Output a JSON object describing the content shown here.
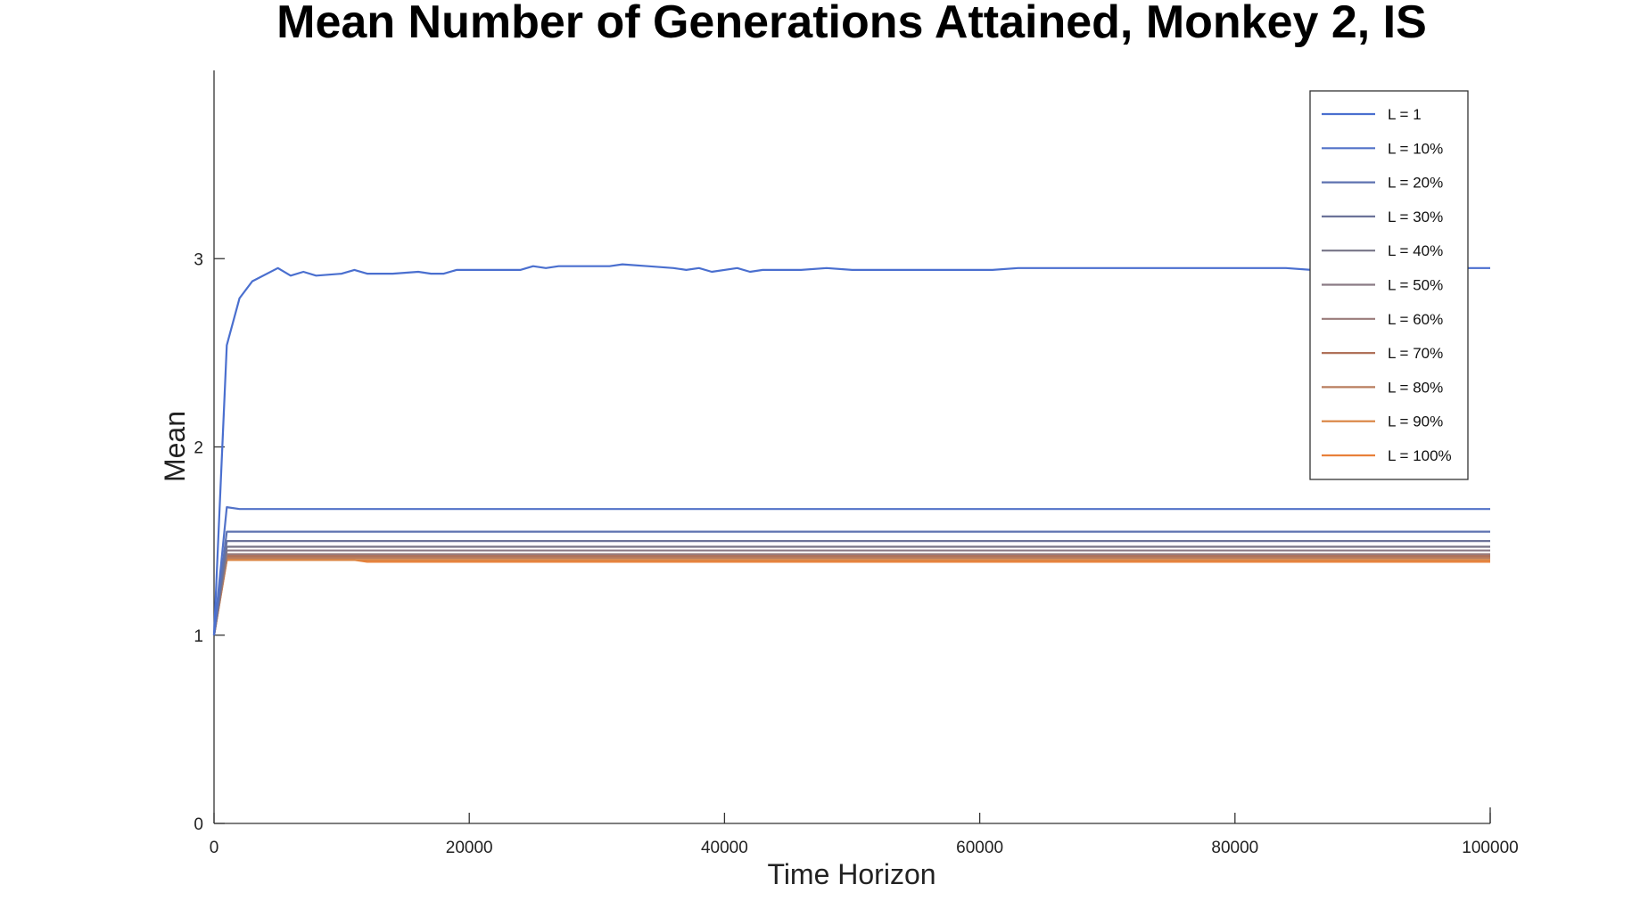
{
  "chart_data": {
    "type": "line",
    "title": "Mean Number of Generations Attained, Monkey 2, IS",
    "xlabel": "Time Horizon",
    "ylabel": "Mean",
    "xlim": [
      0,
      100000
    ],
    "ylim": [
      0,
      4
    ],
    "xticks": [
      0,
      20000,
      40000,
      60000,
      80000,
      100000
    ],
    "xtick_labels": [
      "0",
      "20000",
      "40000",
      "60000",
      "80000",
      "100000"
    ],
    "yticks": [
      0,
      1,
      2,
      3
    ],
    "ytick_labels": [
      "0",
      "1",
      "2",
      "3"
    ],
    "grid": false,
    "legend_position": "top-right",
    "x": [
      0,
      1000,
      2000,
      3000,
      5000,
      6000,
      7000,
      8000,
      10000,
      11000,
      12000,
      14000,
      16000,
      17000,
      18000,
      19000,
      21000,
      23000,
      24000,
      25000,
      26000,
      27000,
      28000,
      30000,
      31000,
      32000,
      34000,
      36000,
      37000,
      38000,
      39000,
      41000,
      42000,
      43000,
      46000,
      48000,
      50000,
      51000,
      52000,
      54000,
      56000,
      58000,
      60000,
      61000,
      63000,
      65000,
      66000,
      70000,
      72000,
      74000,
      76000,
      78000,
      82000,
      84000,
      86000,
      90000,
      95000,
      100000
    ],
    "series": [
      {
        "name": "L = 1",
        "color": "#4a6fcf",
        "values": [
          1.0,
          2.54,
          2.79,
          2.88,
          2.95,
          2.91,
          2.93,
          2.91,
          2.92,
          2.94,
          2.92,
          2.92,
          2.93,
          2.92,
          2.92,
          2.94,
          2.94,
          2.94,
          2.94,
          2.96,
          2.95,
          2.96,
          2.96,
          2.96,
          2.96,
          2.97,
          2.96,
          2.95,
          2.94,
          2.95,
          2.93,
          2.95,
          2.93,
          2.94,
          2.94,
          2.95,
          2.94,
          2.94,
          2.94,
          2.94,
          2.94,
          2.94,
          2.94,
          2.94,
          2.95,
          2.95,
          2.95,
          2.95,
          2.95,
          2.95,
          2.95,
          2.95,
          2.95,
          2.95,
          2.94,
          2.95,
          2.95,
          2.95
        ]
      },
      {
        "name": "L = 10%",
        "color": "#5272c8",
        "values": [
          1.0,
          1.68,
          1.67,
          1.67,
          1.67,
          1.67,
          1.67,
          1.67,
          1.67,
          1.67,
          1.67,
          1.67,
          1.67,
          1.67,
          1.67,
          1.67,
          1.67,
          1.67,
          1.67,
          1.67,
          1.67,
          1.67,
          1.67,
          1.67,
          1.67,
          1.67,
          1.67,
          1.67,
          1.67,
          1.67,
          1.67,
          1.67,
          1.67,
          1.67,
          1.67,
          1.67,
          1.67,
          1.67,
          1.67,
          1.67,
          1.67,
          1.67,
          1.67,
          1.67,
          1.67,
          1.67,
          1.67,
          1.67,
          1.67,
          1.67,
          1.67,
          1.67,
          1.67,
          1.67,
          1.67,
          1.67,
          1.67,
          1.67
        ]
      },
      {
        "name": "L = 20%",
        "color": "#5e72b0",
        "values": [
          1.0,
          1.55,
          1.55,
          1.55,
          1.55,
          1.55,
          1.55,
          1.55,
          1.55,
          1.55,
          1.55,
          1.55,
          1.55,
          1.55,
          1.55,
          1.55,
          1.55,
          1.55,
          1.55,
          1.55,
          1.55,
          1.55,
          1.55,
          1.55,
          1.55,
          1.55,
          1.55,
          1.55,
          1.55,
          1.55,
          1.55,
          1.55,
          1.55,
          1.55,
          1.55,
          1.55,
          1.55,
          1.55,
          1.55,
          1.55,
          1.55,
          1.55,
          1.55,
          1.55,
          1.55,
          1.55,
          1.55,
          1.55,
          1.55,
          1.55,
          1.55,
          1.55,
          1.55,
          1.55,
          1.55,
          1.55,
          1.55,
          1.55
        ]
      },
      {
        "name": "L = 30%",
        "color": "#6c7399",
        "values": [
          1.0,
          1.5,
          1.5,
          1.5,
          1.5,
          1.5,
          1.5,
          1.5,
          1.5,
          1.5,
          1.5,
          1.5,
          1.5,
          1.5,
          1.5,
          1.5,
          1.5,
          1.5,
          1.5,
          1.5,
          1.5,
          1.5,
          1.5,
          1.5,
          1.5,
          1.5,
          1.5,
          1.5,
          1.5,
          1.5,
          1.5,
          1.5,
          1.5,
          1.5,
          1.5,
          1.5,
          1.5,
          1.5,
          1.5,
          1.5,
          1.5,
          1.5,
          1.5,
          1.5,
          1.5,
          1.5,
          1.5,
          1.5,
          1.5,
          1.5,
          1.5,
          1.5,
          1.5,
          1.5,
          1.5,
          1.5,
          1.5,
          1.5
        ]
      },
      {
        "name": "L = 40%",
        "color": "#777587",
        "values": [
          1.0,
          1.47,
          1.47,
          1.47,
          1.47,
          1.47,
          1.47,
          1.47,
          1.47,
          1.47,
          1.47,
          1.47,
          1.47,
          1.47,
          1.47,
          1.47,
          1.47,
          1.47,
          1.47,
          1.47,
          1.47,
          1.47,
          1.47,
          1.47,
          1.47,
          1.47,
          1.47,
          1.47,
          1.47,
          1.47,
          1.47,
          1.47,
          1.47,
          1.47,
          1.47,
          1.47,
          1.47,
          1.47,
          1.47,
          1.47,
          1.47,
          1.47,
          1.47,
          1.47,
          1.47,
          1.47,
          1.47,
          1.47,
          1.47,
          1.47,
          1.47,
          1.47,
          1.47,
          1.47,
          1.47,
          1.47,
          1.47,
          1.47
        ]
      },
      {
        "name": "L = 50%",
        "color": "#8a7a85",
        "values": [
          1.0,
          1.45,
          1.45,
          1.45,
          1.45,
          1.45,
          1.45,
          1.45,
          1.45,
          1.45,
          1.45,
          1.45,
          1.45,
          1.45,
          1.45,
          1.45,
          1.45,
          1.45,
          1.45,
          1.45,
          1.45,
          1.45,
          1.45,
          1.45,
          1.45,
          1.45,
          1.45,
          1.45,
          1.45,
          1.45,
          1.45,
          1.45,
          1.45,
          1.45,
          1.45,
          1.45,
          1.45,
          1.45,
          1.45,
          1.45,
          1.45,
          1.45,
          1.45,
          1.45,
          1.45,
          1.45,
          1.45,
          1.45,
          1.45,
          1.45,
          1.45,
          1.45,
          1.45,
          1.45,
          1.45,
          1.45,
          1.45,
          1.45
        ]
      },
      {
        "name": "L = 60%",
        "color": "#9a7b7a",
        "values": [
          1.0,
          1.43,
          1.43,
          1.43,
          1.43,
          1.43,
          1.43,
          1.43,
          1.43,
          1.43,
          1.43,
          1.43,
          1.43,
          1.43,
          1.43,
          1.43,
          1.43,
          1.43,
          1.43,
          1.43,
          1.43,
          1.43,
          1.43,
          1.43,
          1.43,
          1.43,
          1.43,
          1.43,
          1.43,
          1.43,
          1.43,
          1.43,
          1.43,
          1.43,
          1.43,
          1.43,
          1.43,
          1.43,
          1.43,
          1.43,
          1.43,
          1.43,
          1.43,
          1.43,
          1.43,
          1.43,
          1.43,
          1.43,
          1.43,
          1.43,
          1.43,
          1.43,
          1.43,
          1.43,
          1.43,
          1.43,
          1.43,
          1.43
        ]
      },
      {
        "name": "L = 70%",
        "color": "#b0725a",
        "values": [
          1.0,
          1.42,
          1.42,
          1.42,
          1.42,
          1.42,
          1.42,
          1.42,
          1.42,
          1.42,
          1.42,
          1.42,
          1.42,
          1.42,
          1.42,
          1.42,
          1.42,
          1.42,
          1.42,
          1.42,
          1.42,
          1.42,
          1.42,
          1.42,
          1.42,
          1.42,
          1.42,
          1.42,
          1.42,
          1.42,
          1.42,
          1.42,
          1.42,
          1.42,
          1.42,
          1.42,
          1.42,
          1.42,
          1.42,
          1.42,
          1.42,
          1.42,
          1.42,
          1.42,
          1.42,
          1.42,
          1.42,
          1.42,
          1.42,
          1.42,
          1.42,
          1.42,
          1.42,
          1.42,
          1.42,
          1.42,
          1.42,
          1.42
        ]
      },
      {
        "name": "L = 80%",
        "color": "#b87d5e",
        "values": [
          1.0,
          1.41,
          1.41,
          1.41,
          1.41,
          1.41,
          1.41,
          1.41,
          1.41,
          1.41,
          1.41,
          1.41,
          1.41,
          1.41,
          1.41,
          1.41,
          1.41,
          1.41,
          1.41,
          1.41,
          1.41,
          1.41,
          1.41,
          1.41,
          1.41,
          1.41,
          1.41,
          1.41,
          1.41,
          1.41,
          1.41,
          1.41,
          1.41,
          1.41,
          1.41,
          1.41,
          1.41,
          1.41,
          1.41,
          1.41,
          1.41,
          1.41,
          1.41,
          1.41,
          1.41,
          1.41,
          1.41,
          1.41,
          1.41,
          1.41,
          1.41,
          1.41,
          1.41,
          1.41,
          1.41,
          1.41,
          1.41,
          1.41
        ]
      },
      {
        "name": "L = 90%",
        "color": "#d9823f",
        "values": [
          1.0,
          1.4,
          1.4,
          1.4,
          1.4,
          1.4,
          1.4,
          1.4,
          1.4,
          1.4,
          1.4,
          1.4,
          1.4,
          1.4,
          1.4,
          1.4,
          1.4,
          1.4,
          1.4,
          1.4,
          1.4,
          1.4,
          1.4,
          1.4,
          1.4,
          1.4,
          1.4,
          1.4,
          1.4,
          1.4,
          1.4,
          1.4,
          1.4,
          1.4,
          1.4,
          1.4,
          1.4,
          1.4,
          1.4,
          1.4,
          1.4,
          1.4,
          1.4,
          1.4,
          1.4,
          1.4,
          1.4,
          1.4,
          1.4,
          1.4,
          1.4,
          1.4,
          1.4,
          1.4,
          1.4,
          1.4,
          1.4,
          1.4
        ]
      },
      {
        "name": "L = 100%",
        "color": "#e8803a",
        "values": [
          1.0,
          1.4,
          1.4,
          1.4,
          1.4,
          1.4,
          1.4,
          1.4,
          1.4,
          1.4,
          1.39,
          1.39,
          1.39,
          1.39,
          1.39,
          1.39,
          1.39,
          1.39,
          1.39,
          1.39,
          1.39,
          1.39,
          1.39,
          1.39,
          1.39,
          1.39,
          1.39,
          1.39,
          1.39,
          1.39,
          1.39,
          1.39,
          1.39,
          1.39,
          1.39,
          1.39,
          1.39,
          1.39,
          1.39,
          1.39,
          1.39,
          1.39,
          1.39,
          1.39,
          1.39,
          1.39,
          1.39,
          1.39,
          1.39,
          1.39,
          1.39,
          1.39,
          1.39,
          1.39,
          1.39,
          1.39,
          1.39,
          1.39
        ]
      }
    ]
  }
}
